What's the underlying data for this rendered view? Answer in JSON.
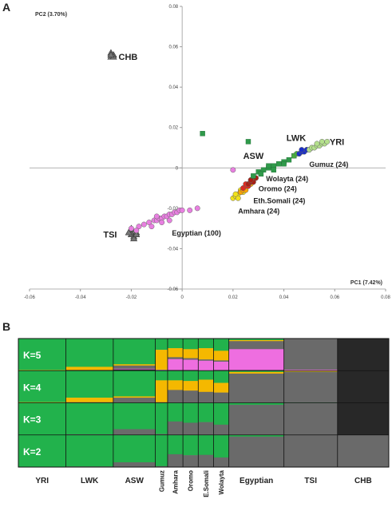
{
  "panel_a": {
    "label": "A",
    "chart_data": {
      "type": "scatter",
      "xlabel": "PC1 (7.42%)",
      "ylabel": "PC2 (3.70%)",
      "xlim": [
        -0.06,
        0.08
      ],
      "ylim": [
        -0.06,
        0.08
      ],
      "x_ticks": [
        -0.06,
        -0.04,
        -0.02,
        0,
        0.02,
        0.04,
        0.06,
        0.08
      ],
      "x_tick_labels": [
        "-0.06",
        "-0.04",
        "-0.02",
        "0",
        "0.02",
        "0.04",
        "0.06",
        "0.08"
      ],
      "y_ticks": [
        -0.06,
        -0.04,
        -0.02,
        0,
        0.02,
        0.04,
        0.06,
        0.08
      ],
      "y_tick_labels": [
        "-0.06",
        "-0.04",
        "-0.02",
        "0",
        "0.02",
        "0.04",
        "0.06",
        "0.08"
      ],
      "grid": false,
      "series": [
        {
          "name": "CHB",
          "marker": "triangle",
          "color": "#555555",
          "x": [
            -0.028,
            -0.027,
            -0.028,
            -0.027,
            -0.028
          ],
          "y": [
            0.055,
            0.056,
            0.057,
            0.055,
            0.056
          ]
        },
        {
          "name": "TSI",
          "marker": "triangle",
          "color": "#555555",
          "x": [
            -0.02,
            -0.019,
            -0.02,
            -0.019,
            -0.018,
            -0.02,
            -0.019,
            -0.021,
            -0.018
          ],
          "y": [
            -0.031,
            -0.032,
            -0.033,
            -0.034,
            -0.032,
            -0.03,
            -0.035,
            -0.032,
            -0.033
          ]
        },
        {
          "name": "Egyptian",
          "marker": "circle",
          "color": "#e87fe0",
          "x": [
            -0.02,
            -0.017,
            -0.015,
            -0.013,
            -0.011,
            -0.01,
            -0.009,
            -0.008,
            -0.007,
            -0.006,
            -0.005,
            -0.004,
            -0.003,
            -0.002,
            -0.001,
            0.0,
            -0.012,
            -0.008,
            -0.005,
            -0.01,
            0.003,
            0.006,
            -0.018,
            0.02
          ],
          "y": [
            -0.03,
            -0.029,
            -0.028,
            -0.027,
            -0.026,
            -0.026,
            -0.025,
            -0.025,
            -0.024,
            -0.024,
            -0.023,
            -0.023,
            -0.022,
            -0.022,
            -0.021,
            -0.021,
            -0.029,
            -0.027,
            -0.026,
            -0.024,
            -0.021,
            -0.02,
            -0.031,
            -0.001
          ]
        },
        {
          "name": "Amhara",
          "marker": "circle",
          "color": "#f2e21a",
          "x": [
            0.02,
            0.021,
            0.022,
            0.023,
            0.024,
            0.025,
            0.022,
            0.024,
            0.021,
            0.023
          ],
          "y": [
            -0.015,
            -0.014,
            -0.013,
            -0.012,
            -0.011,
            -0.01,
            -0.015,
            -0.012,
            -0.013,
            -0.011
          ]
        },
        {
          "name": "Eth.Somali",
          "marker": "circle",
          "color": "#ffa500",
          "x": [
            0.023,
            0.024,
            0.025,
            0.026,
            0.027,
            0.025,
            0.024
          ],
          "y": [
            -0.012,
            -0.011,
            -0.01,
            -0.009,
            -0.008,
            -0.011,
            -0.01
          ]
        },
        {
          "name": "Oromo",
          "marker": "circle",
          "color": "#e52a1e",
          "x": [
            0.024,
            0.025,
            0.026,
            0.027,
            0.028,
            0.026,
            0.025,
            0.027
          ],
          "y": [
            -0.01,
            -0.009,
            -0.008,
            -0.007,
            -0.006,
            -0.009,
            -0.008,
            -0.006
          ]
        },
        {
          "name": "Wolayta",
          "marker": "circle",
          "color": "#a82014",
          "x": [
            0.026,
            0.027,
            0.028,
            0.029,
            0.028,
            0.027
          ],
          "y": [
            -0.008,
            -0.007,
            -0.006,
            -0.005,
            -0.007,
            -0.006
          ]
        },
        {
          "name": "ASW",
          "marker": "square",
          "color": "#2f9a4a",
          "x": [
            0.008,
            0.026,
            0.03,
            0.032,
            0.034,
            0.036,
            0.038,
            0.04,
            0.042,
            0.044,
            0.036,
            0.04,
            0.028,
            0.031,
            0.034
          ],
          "y": [
            0.017,
            0.013,
            -0.002,
            -0.001,
            0.0,
            0.001,
            0.002,
            0.003,
            0.004,
            0.006,
            -0.001,
            0.002,
            -0.004,
            -0.003,
            0.001
          ]
        },
        {
          "name": "LWK",
          "marker": "circle",
          "color": "#46b03c",
          "x": [
            0.044,
            0.045,
            0.046,
            0.047,
            0.048,
            0.049,
            0.05,
            0.051
          ],
          "y": [
            0.006,
            0.007,
            0.007,
            0.008,
            0.008,
            0.009,
            0.009,
            0.01
          ]
        },
        {
          "name": "Gumuz",
          "marker": "circle",
          "color": "#1a2ec8",
          "x": [
            0.046,
            0.047,
            0.048,
            0.049,
            0.047
          ],
          "y": [
            0.007,
            0.008,
            0.008,
            0.009,
            0.009
          ]
        },
        {
          "name": "YRI",
          "marker": "circle",
          "color": "#b4e08c",
          "x": [
            0.05,
            0.051,
            0.052,
            0.053,
            0.054,
            0.055,
            0.056,
            0.057,
            0.053,
            0.055
          ],
          "y": [
            0.009,
            0.01,
            0.01,
            0.011,
            0.011,
            0.012,
            0.012,
            0.013,
            0.012,
            0.013
          ]
        }
      ],
      "annotations": [
        {
          "text": "CHB",
          "x": -0.025,
          "y": 0.055
        },
        {
          "text": "LWK",
          "x": 0.041,
          "y": 0.015
        },
        {
          "text": "YRI",
          "x": 0.058,
          "y": 0.013
        },
        {
          "text": "ASW",
          "x": 0.024,
          "y": 0.006
        },
        {
          "text": "Gumuz (24)",
          "x": 0.05,
          "y": 0.002
        },
        {
          "text": "Wolayta (24)",
          "x": 0.033,
          "y": -0.005
        },
        {
          "text": "Oromo (24)",
          "x": 0.03,
          "y": -0.01
        },
        {
          "text": "Eth.Somali (24)",
          "x": 0.028,
          "y": -0.016
        },
        {
          "text": "Amhara (24)",
          "x": 0.022,
          "y": -0.021
        },
        {
          "text": "TSI",
          "x": -0.031,
          "y": -0.033
        },
        {
          "text": "Egyptian (100)",
          "x": -0.004,
          "y": -0.032
        }
      ]
    }
  },
  "panel_b": {
    "label": "B",
    "chart_data": {
      "type": "bar",
      "stacked": true,
      "row_labels": [
        "K=5",
        "K=4",
        "K=3",
        "K=2"
      ],
      "populations": [
        "YRI",
        "LWK",
        "ASW",
        "Gumuz",
        "Amhara",
        "Oromo",
        "E.Somali",
        "Wolayta",
        "Egyptian",
        "TSI",
        "CHB"
      ],
      "component_colors": [
        "#22b24c",
        "#f5b800",
        "#6a6a6a",
        "#ee6ee0",
        "#282828"
      ],
      "rows": [
        {
          "K": 5,
          "blocks": [
            {
              "pop": "YRI",
              "props": [
                0.98,
                0.02,
                0,
                0,
                0
              ]
            },
            {
              "pop": "LWK",
              "props": [
                0.88,
                0.1,
                0,
                0,
                0.02
              ]
            },
            {
              "pop": "ASW",
              "props": [
                0.8,
                0.04,
                0.1,
                0.02,
                0.04
              ]
            },
            {
              "pop": "Gumuz",
              "props": [
                0.35,
                0.62,
                0.01,
                0.01,
                0.01
              ]
            },
            {
              "pop": "Amhara",
              "props": [
                0.3,
                0.28,
                0.06,
                0.34,
                0.02
              ]
            },
            {
              "pop": "Oromo",
              "props": [
                0.33,
                0.28,
                0.05,
                0.32,
                0.02
              ]
            },
            {
              "pop": "E.Somali",
              "props": [
                0.3,
                0.35,
                0.04,
                0.3,
                0.01
              ]
            },
            {
              "pop": "Wolayta",
              "props": [
                0.38,
                0.3,
                0.04,
                0.26,
                0.02
              ]
            },
            {
              "pop": "Egyptian",
              "props": [
                0.05,
                0.03,
                0.25,
                0.65,
                0.02
              ]
            },
            {
              "pop": "TSI",
              "props": [
                0.01,
                0,
                0.96,
                0.03,
                0
              ]
            },
            {
              "pop": "CHB",
              "props": [
                0,
                0,
                0,
                0,
                1.0
              ]
            }
          ]
        },
        {
          "K": 4,
          "blocks": [
            {
              "pop": "YRI",
              "props": [
                0.98,
                0.02,
                0,
                0,
                0
              ]
            },
            {
              "pop": "LWK",
              "props": [
                0.84,
                0.14,
                0.02,
                0,
                0
              ]
            },
            {
              "pop": "ASW",
              "props": [
                0.8,
                0.04,
                0.16,
                0,
                0
              ]
            },
            {
              "pop": "Gumuz",
              "props": [
                0.3,
                0.68,
                0.02,
                0,
                0
              ]
            },
            {
              "pop": "Amhara",
              "props": [
                0.3,
                0.3,
                0.4,
                0,
                0
              ]
            },
            {
              "pop": "Oromo",
              "props": [
                0.32,
                0.3,
                0.38,
                0,
                0
              ]
            },
            {
              "pop": "E.Somali",
              "props": [
                0.28,
                0.38,
                0.34,
                0,
                0
              ]
            },
            {
              "pop": "Wolayta",
              "props": [
                0.38,
                0.3,
                0.32,
                0,
                0
              ]
            },
            {
              "pop": "Egyptian",
              "props": [
                0.04,
                0.05,
                0.91,
                0,
                0
              ]
            },
            {
              "pop": "TSI",
              "props": [
                0.01,
                0.02,
                0.97,
                0,
                0
              ]
            },
            {
              "pop": "CHB",
              "props": [
                0,
                0,
                0,
                0,
                1.0
              ]
            }
          ]
        },
        {
          "K": 3,
          "blocks": [
            {
              "pop": "YRI",
              "props": [
                1.0,
                0,
                0,
                0,
                0
              ]
            },
            {
              "pop": "LWK",
              "props": [
                0.98,
                0,
                0.02,
                0,
                0
              ]
            },
            {
              "pop": "ASW",
              "props": [
                0.82,
                0,
                0.18,
                0,
                0
              ]
            },
            {
              "pop": "Gumuz",
              "props": [
                0.97,
                0,
                0.03,
                0,
                0
              ]
            },
            {
              "pop": "Amhara",
              "props": [
                0.58,
                0,
                0.42,
                0,
                0
              ]
            },
            {
              "pop": "Oromo",
              "props": [
                0.62,
                0,
                0.38,
                0,
                0
              ]
            },
            {
              "pop": "E.Somali",
              "props": [
                0.6,
                0,
                0.4,
                0,
                0
              ]
            },
            {
              "pop": "Wolayta",
              "props": [
                0.68,
                0,
                0.32,
                0,
                0
              ]
            },
            {
              "pop": "Egyptian",
              "props": [
                0.06,
                0,
                0.94,
                0,
                0
              ]
            },
            {
              "pop": "TSI",
              "props": [
                0.01,
                0,
                0.99,
                0,
                0
              ]
            },
            {
              "pop": "CHB",
              "props": [
                0,
                0,
                0,
                0,
                1.0
              ]
            }
          ]
        },
        {
          "K": 2,
          "blocks": [
            {
              "pop": "YRI",
              "props": [
                1.0,
                0,
                0,
                0,
                0
              ]
            },
            {
              "pop": "LWK",
              "props": [
                0.98,
                0,
                0.02,
                0,
                0
              ]
            },
            {
              "pop": "ASW",
              "props": [
                0.85,
                0,
                0.15,
                0,
                0
              ]
            },
            {
              "pop": "Gumuz",
              "props": [
                0.97,
                0,
                0.03,
                0,
                0
              ]
            },
            {
              "pop": "Amhara",
              "props": [
                0.6,
                0,
                0.4,
                0,
                0
              ]
            },
            {
              "pop": "Oromo",
              "props": [
                0.63,
                0,
                0.37,
                0,
                0
              ]
            },
            {
              "pop": "E.Somali",
              "props": [
                0.62,
                0,
                0.38,
                0,
                0
              ]
            },
            {
              "pop": "Wolayta",
              "props": [
                0.7,
                0,
                0.3,
                0,
                0
              ]
            },
            {
              "pop": "Egyptian",
              "props": [
                0.05,
                0,
                0.95,
                0,
                0
              ]
            },
            {
              "pop": "TSI",
              "props": [
                0,
                0,
                1.0,
                0,
                0
              ]
            },
            {
              "pop": "CHB",
              "props": [
                0,
                0,
                1.0,
                0,
                0
              ]
            }
          ]
        }
      ]
    }
  }
}
